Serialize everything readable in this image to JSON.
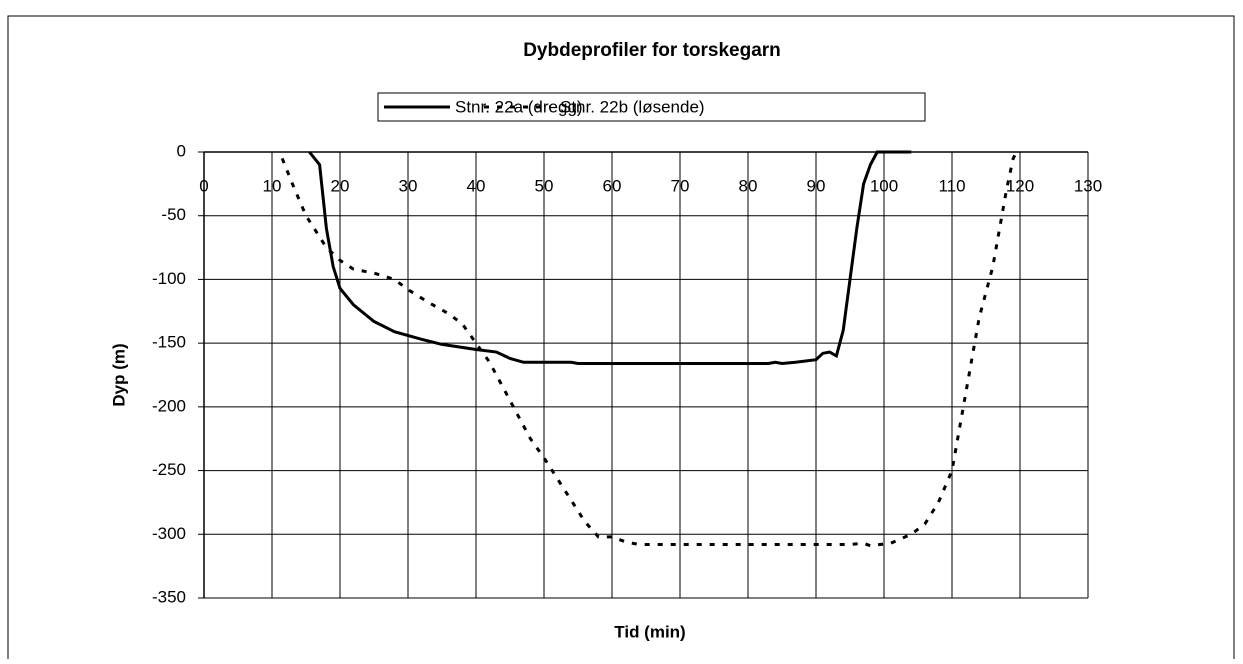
{
  "chart_data": {
    "type": "line",
    "title": "Dybdeprofiler for torskegarn",
    "xlabel": "Tid (min)",
    "ylabel": "Dyp (m)",
    "xlim": [
      0,
      130
    ],
    "xticks": [
      0,
      10,
      20,
      30,
      40,
      50,
      60,
      70,
      80,
      90,
      100,
      110,
      120,
      130
    ],
    "ylim": [
      -350,
      0
    ],
    "yticks": [
      0,
      -50,
      -100,
      -150,
      -200,
      -250,
      -300,
      -350
    ],
    "grid": true,
    "legend": "top",
    "series": [
      {
        "name": "Stnr. 22a (dregg)",
        "color": "#000000",
        "style": "solid",
        "x": [
          15.5,
          17,
          18,
          19,
          20,
          22,
          25,
          28,
          32,
          35,
          40,
          43,
          45,
          47,
          54,
          55,
          83,
          84,
          85,
          87,
          90,
          91,
          92,
          93,
          94,
          95,
          96,
          97,
          98,
          99,
          104
        ],
        "values": [
          0,
          -10,
          -60,
          -90,
          -107,
          -120,
          -133,
          -141,
          -147,
          -151,
          -155,
          -157,
          -162,
          -165,
          -165,
          -166,
          -166,
          -165,
          -166,
          -165,
          -163,
          -158,
          -157,
          -160,
          -140,
          -100,
          -60,
          -25,
          -10,
          0,
          0
        ]
      },
      {
        "name": "Stnr. 22b (løsende)",
        "color": "#000000",
        "style": "dotted",
        "x": [
          11.5,
          13,
          15,
          18,
          20,
          22,
          25,
          28,
          30,
          33,
          36,
          38,
          40,
          42,
          45,
          48,
          50,
          53,
          56,
          58,
          60,
          62,
          64,
          95,
          97,
          98,
          101,
          104,
          106,
          108,
          110,
          111,
          112,
          113,
          114,
          116,
          117,
          118,
          119,
          119.5
        ],
        "values": [
          -5,
          -25,
          -50,
          -75,
          -85,
          -92,
          -95,
          -100,
          -108,
          -118,
          -127,
          -135,
          -150,
          -165,
          -195,
          -225,
          -240,
          -265,
          -290,
          -302,
          -302,
          -306,
          -308,
          -308,
          -307,
          -309,
          -307,
          -300,
          -292,
          -275,
          -250,
          -220,
          -190,
          -160,
          -130,
          -90,
          -60,
          -30,
          -5,
          0
        ]
      }
    ]
  }
}
